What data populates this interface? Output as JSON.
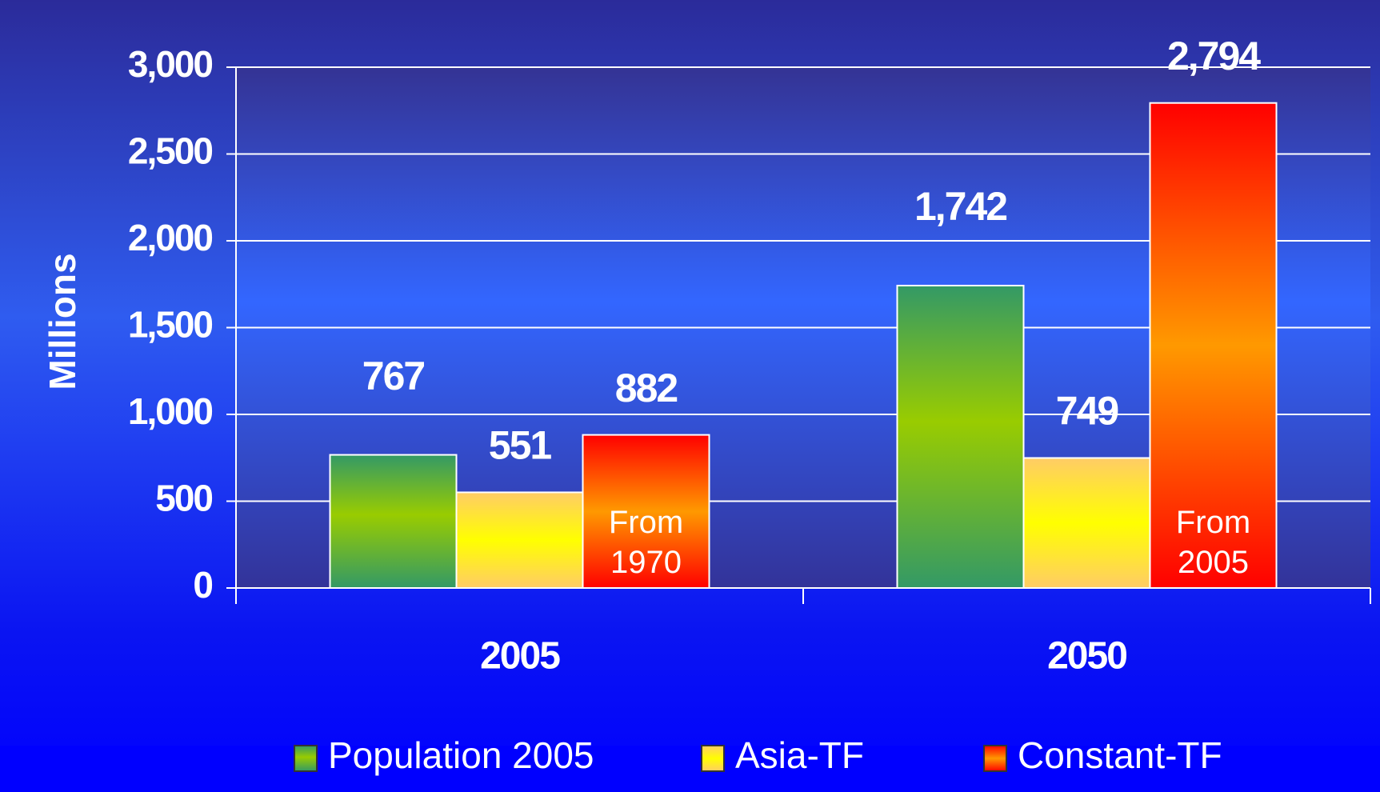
{
  "chart_data": {
    "type": "bar",
    "y_label": "Millions",
    "categories": [
      "2005",
      "2050"
    ],
    "series": [
      {
        "name": "Population 2005",
        "color": "#99cc00",
        "values": [
          767,
          1742
        ],
        "value_labels": [
          "767",
          "1,742"
        ]
      },
      {
        "name": "Asia-TF",
        "color": "#ffff00",
        "values": [
          551,
          749
        ],
        "value_labels": [
          "551",
          "749"
        ]
      },
      {
        "name": "Constant-TF",
        "color": "#ff9900",
        "values": [
          882,
          2794
        ],
        "value_labels": [
          "882",
          "2,794"
        ],
        "notes": [
          "From 1970",
          "From 2005"
        ]
      }
    ],
    "ylim": [
      0,
      3000
    ],
    "yticks": [
      0,
      500,
      {
        "value": 1000,
        "label": "1,000"
      },
      {
        "value": 1500,
        "label": "1,500"
      },
      {
        "value": 2000,
        "label": "2,000"
      },
      {
        "value": 2500,
        "label": "2,500"
      },
      {
        "value": 3000,
        "label": "3,000"
      }
    ],
    "grid": true,
    "legend": "bottom"
  }
}
